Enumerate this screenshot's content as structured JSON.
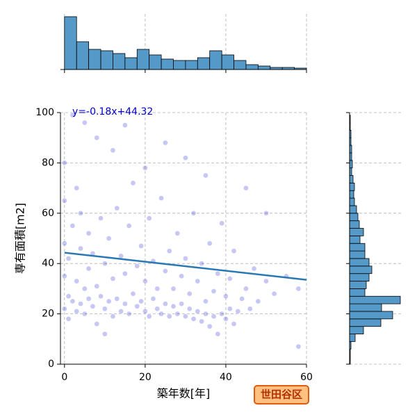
{
  "chart_data": [
    {
      "type": "scatter",
      "xlabel": "築年数[年]",
      "ylabel": "専有面積[m2]",
      "annotation": "y=-0.18x+44.32",
      "badge": "世田谷区",
      "color": "#0000cd",
      "line_color": "#2878b5",
      "grid": true,
      "xlim": [
        -1,
        60
      ],
      "ylim": [
        0,
        100
      ],
      "xticks": [
        0,
        20,
        40,
        60
      ],
      "yticks": [
        0,
        20,
        40,
        60,
        80,
        100
      ],
      "regression": {
        "slope": -0.18,
        "intercept": 44.32,
        "x": [
          0,
          60
        ]
      },
      "x": [
        0,
        0,
        0,
        0,
        0,
        1,
        1,
        1,
        2,
        2,
        2,
        3,
        3,
        3,
        4,
        4,
        4,
        5,
        5,
        5,
        6,
        6,
        6,
        7,
        7,
        8,
        8,
        9,
        9,
        10,
        10,
        10,
        11,
        11,
        12,
        12,
        13,
        13,
        14,
        14,
        15,
        15,
        16,
        16,
        17,
        17,
        18,
        18,
        19,
        19,
        20,
        20,
        21,
        21,
        22,
        22,
        23,
        23,
        24,
        24,
        25,
        25,
        26,
        26,
        27,
        27,
        28,
        28,
        29,
        29,
        30,
        30,
        31,
        31,
        32,
        32,
        33,
        33,
        34,
        34,
        35,
        35,
        36,
        36,
        37,
        37,
        38,
        38,
        39,
        39,
        40,
        40,
        41,
        41,
        42,
        42,
        43,
        44,
        45,
        46,
        47,
        48,
        50,
        52,
        55,
        58,
        8,
        12,
        15,
        20,
        25,
        30,
        35,
        45,
        50,
        58
      ],
      "y": [
        22,
        35,
        48,
        65,
        80,
        18,
        27,
        42,
        25,
        55,
        99,
        21,
        33,
        70,
        24,
        46,
        60,
        20,
        30,
        96,
        26,
        38,
        52,
        23,
        44,
        16,
        31,
        27,
        58,
        12,
        22,
        40,
        25,
        50,
        19,
        34,
        26,
        62,
        21,
        43,
        24,
        36,
        20,
        55,
        28,
        72,
        23,
        39,
        25,
        47,
        21,
        33,
        19,
        58,
        26,
        41,
        22,
        30,
        20,
        66,
        24,
        37,
        19,
        45,
        23,
        30,
        20,
        52,
        24,
        35,
        19,
        42,
        22,
        28,
        18,
        60,
        21,
        33,
        17,
        40,
        20,
        25,
        15,
        48,
        19,
        29,
        12,
        36,
        20,
        56,
        18,
        27,
        22,
        34,
        16,
        45,
        21,
        26,
        30,
        22,
        38,
        25,
        33,
        28,
        35,
        30,
        90,
        85,
        95,
        78,
        88,
        82,
        75,
        70,
        60,
        7
      ]
    },
    {
      "type": "histogram",
      "orientation": "vertical",
      "color": "#5499c7",
      "grid": true,
      "xlim": [
        -1,
        60
      ],
      "xticks": [
        0,
        20,
        40,
        60
      ],
      "bins": [
        0,
        3,
        6,
        9,
        12,
        15,
        18,
        21,
        24,
        27,
        30,
        33,
        36,
        39,
        42,
        45,
        48,
        51,
        54,
        57,
        60
      ],
      "counts": [
        76,
        40,
        29,
        27,
        23,
        17,
        29,
        21,
        15,
        13,
        13,
        17,
        27,
        21,
        13,
        7,
        5,
        3,
        3,
        2
      ]
    },
    {
      "type": "histogram",
      "orientation": "horizontal",
      "color": "#5499c7",
      "grid": true,
      "ylim": [
        0,
        100
      ],
      "yticks": [
        0,
        20,
        40,
        60,
        80,
        100
      ],
      "bins": [
        0,
        3,
        6,
        9,
        12,
        15,
        18,
        21,
        24,
        27,
        30,
        33,
        36,
        39,
        42,
        45,
        48,
        51,
        54,
        57,
        60,
        63,
        66,
        69,
        72,
        75,
        78,
        81,
        84,
        87,
        90,
        93,
        96,
        99
      ],
      "counts": [
        1,
        1,
        2,
        8,
        20,
        45,
        62,
        46,
        73,
        22,
        24,
        28,
        32,
        28,
        22,
        22,
        15,
        20,
        14,
        12,
        10,
        7,
        6,
        7,
        5,
        3,
        4,
        3,
        3,
        2,
        2,
        1,
        1
      ]
    }
  ]
}
